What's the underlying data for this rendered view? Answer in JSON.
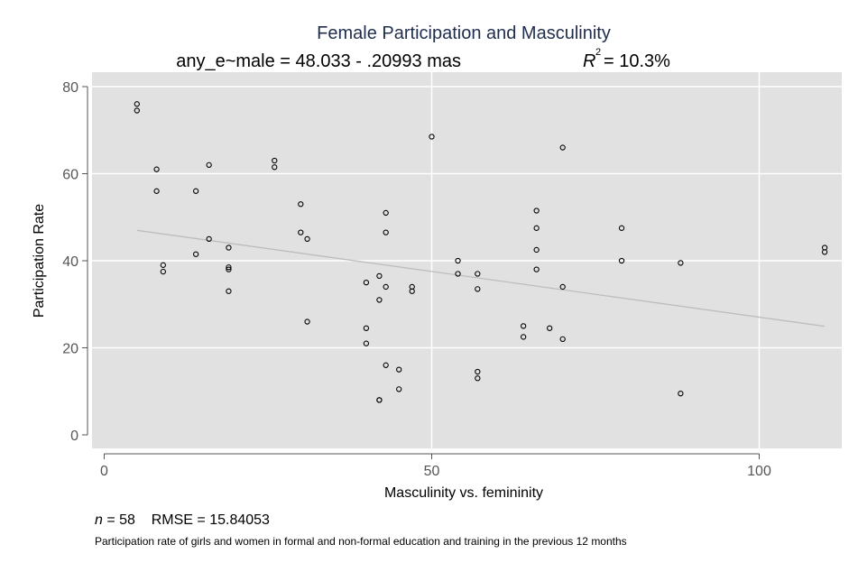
{
  "chart_data": {
    "type": "scatter",
    "title": "Female Participation and Masculinity",
    "subtitle_left": "any_e~male = 48.033 - .20993 mas",
    "subtitle_r2_label": "R",
    "subtitle_r2_sup": "2",
    "subtitle_r2_value": "= 10.3%",
    "xlabel": "Masculinity vs. femininity",
    "ylabel": "Participation Rate",
    "xlim": [
      -3,
      113
    ],
    "ylim": [
      -3,
      83
    ],
    "xticks": [
      0,
      50,
      100
    ],
    "yticks": [
      0,
      20,
      40,
      60,
      80
    ],
    "grid": true,
    "fit_line": {
      "intercept": 48.033,
      "slope": -0.20993,
      "x_range": [
        5,
        110
      ]
    },
    "points": [
      [
        5,
        76
      ],
      [
        5,
        74.5
      ],
      [
        8,
        61
      ],
      [
        8,
        56
      ],
      [
        9,
        39
      ],
      [
        9,
        37.5
      ],
      [
        14,
        56
      ],
      [
        14,
        41.5
      ],
      [
        16,
        62
      ],
      [
        16,
        45
      ],
      [
        19,
        43
      ],
      [
        19,
        38.5
      ],
      [
        19,
        38
      ],
      [
        19,
        33
      ],
      [
        26,
        63
      ],
      [
        26,
        61.5
      ],
      [
        30,
        53
      ],
      [
        30,
        46.5
      ],
      [
        31,
        45
      ],
      [
        31,
        26
      ],
      [
        40,
        35
      ],
      [
        40,
        24.5
      ],
      [
        40,
        21
      ],
      [
        42,
        36.5
      ],
      [
        42,
        31
      ],
      [
        42,
        8
      ],
      [
        42,
        8
      ],
      [
        43,
        51
      ],
      [
        43,
        46.5
      ],
      [
        43,
        34
      ],
      [
        43,
        16
      ],
      [
        45,
        15
      ],
      [
        45,
        10.5
      ],
      [
        47,
        34
      ],
      [
        47,
        33
      ],
      [
        50,
        68.5
      ],
      [
        54,
        40
      ],
      [
        54,
        37
      ],
      [
        57,
        37
      ],
      [
        57,
        33.5
      ],
      [
        57,
        14.5
      ],
      [
        57,
        13
      ],
      [
        64,
        25
      ],
      [
        64,
        22.5
      ],
      [
        66,
        51.5
      ],
      [
        66,
        47.5
      ],
      [
        66,
        42.5
      ],
      [
        66,
        38
      ],
      [
        68,
        24.5
      ],
      [
        70,
        66
      ],
      [
        70,
        34
      ],
      [
        70,
        22
      ],
      [
        79,
        47.5
      ],
      [
        79,
        40
      ],
      [
        88,
        39.5
      ],
      [
        88,
        9.5
      ],
      [
        110,
        43
      ],
      [
        110,
        42
      ]
    ]
  },
  "notes": {
    "n_label": "n",
    "n_value": "= 58",
    "rmse": "RMSE =  15.84053",
    "caption": "Participation rate of girls and women in formal and non-formal education and training in the previous 12 months"
  },
  "colors": {
    "plot_bg": "#e1e1e1",
    "grid": "#ffffff",
    "fit_line": "#bdbdbd",
    "marker": "#000000",
    "title": "#1f2d4d"
  }
}
